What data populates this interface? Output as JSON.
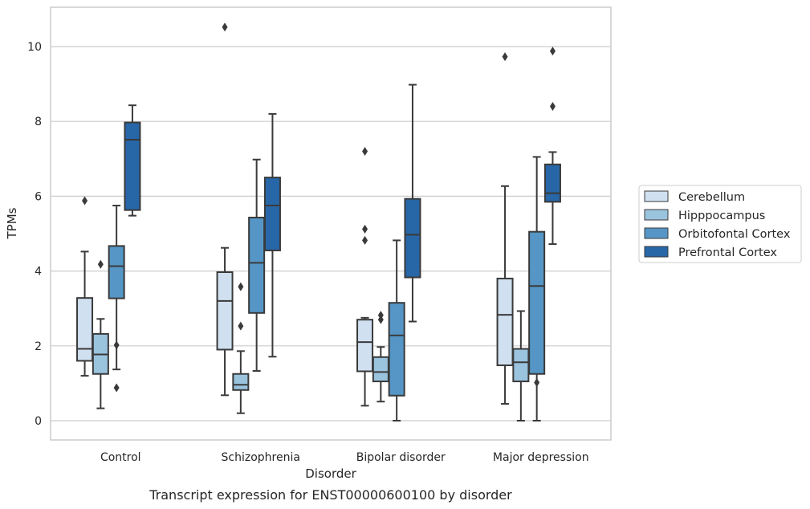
{
  "chart_data": {
    "type": "box",
    "title": "",
    "caption": "Transcript expression for ENST00000600100 by disorder",
    "xlabel": "Disorder",
    "ylabel": "TPMs",
    "ylim": [
      -0.5,
      11.05
    ],
    "yticks": [
      0,
      2,
      4,
      6,
      8,
      10
    ],
    "grid": true,
    "legend_placement": "right",
    "categories": [
      "Control",
      "Schizophrenia",
      "Bipolar disorder",
      "Major depression"
    ],
    "series": [
      {
        "name": "Cerebellum",
        "color": "#d0e0f0",
        "boxes": [
          {
            "whislo": 1.2,
            "q1": 1.6,
            "med": 1.92,
            "q3": 3.28,
            "whishi": 4.52,
            "fliers": [
              5.88
            ]
          },
          {
            "whislo": 0.68,
            "q1": 1.9,
            "med": 3.2,
            "q3": 3.97,
            "whishi": 4.62,
            "fliers": [
              10.52
            ]
          },
          {
            "whislo": 0.4,
            "q1": 1.32,
            "med": 2.1,
            "q3": 2.7,
            "whishi": 2.75,
            "fliers": [
              4.82,
              5.12,
              7.2
            ]
          },
          {
            "whislo": 0.45,
            "q1": 1.48,
            "med": 2.83,
            "q3": 3.8,
            "whishi": 6.27,
            "fliers": [
              9.73
            ]
          }
        ]
      },
      {
        "name": "Hipppocampus",
        "color": "#9ac3de",
        "boxes": [
          {
            "whislo": 0.33,
            "q1": 1.25,
            "med": 1.77,
            "q3": 2.32,
            "whishi": 2.72,
            "fliers": [
              4.18
            ]
          },
          {
            "whislo": 0.2,
            "q1": 0.82,
            "med": 0.96,
            "q3": 1.25,
            "whishi": 1.86,
            "fliers": [
              2.53,
              3.58
            ]
          },
          {
            "whislo": 0.51,
            "q1": 1.05,
            "med": 1.3,
            "q3": 1.7,
            "whishi": 1.97,
            "fliers": [
              2.7,
              2.82
            ]
          },
          {
            "whislo": 0.0,
            "q1": 1.05,
            "med": 1.56,
            "q3": 1.92,
            "whishi": 2.93,
            "fliers": []
          }
        ]
      },
      {
        "name": "Orbitofontal Cortex",
        "color": "#5596c6",
        "boxes": [
          {
            "whislo": 1.37,
            "q1": 3.27,
            "med": 4.13,
            "q3": 4.67,
            "whishi": 5.75,
            "fliers": [
              0.88,
              2.02
            ]
          },
          {
            "whislo": 1.33,
            "q1": 2.88,
            "med": 4.22,
            "q3": 5.43,
            "whishi": 6.98,
            "fliers": []
          },
          {
            "whislo": 0.0,
            "q1": 0.67,
            "med": 2.28,
            "q3": 3.15,
            "whishi": 4.82,
            "fliers": []
          },
          {
            "whislo": 0.0,
            "q1": 1.25,
            "med": 3.6,
            "q3": 5.05,
            "whishi": 7.05,
            "fliers": [
              1.02
            ]
          }
        ]
      },
      {
        "name": "Prefrontal Cortex",
        "color": "#2766a7",
        "boxes": [
          {
            "whislo": 5.48,
            "q1": 5.63,
            "med": 7.51,
            "q3": 7.97,
            "whishi": 8.43,
            "fliers": []
          },
          {
            "whislo": 1.71,
            "q1": 4.55,
            "med": 5.75,
            "q3": 6.5,
            "whishi": 8.2,
            "fliers": []
          },
          {
            "whislo": 2.65,
            "q1": 3.83,
            "med": 4.97,
            "q3": 5.93,
            "whishi": 8.98,
            "fliers": []
          },
          {
            "whislo": 4.72,
            "q1": 5.85,
            "med": 6.08,
            "q3": 6.85,
            "whishi": 7.18,
            "fliers": [
              8.4,
              9.88
            ]
          }
        ]
      }
    ]
  }
}
